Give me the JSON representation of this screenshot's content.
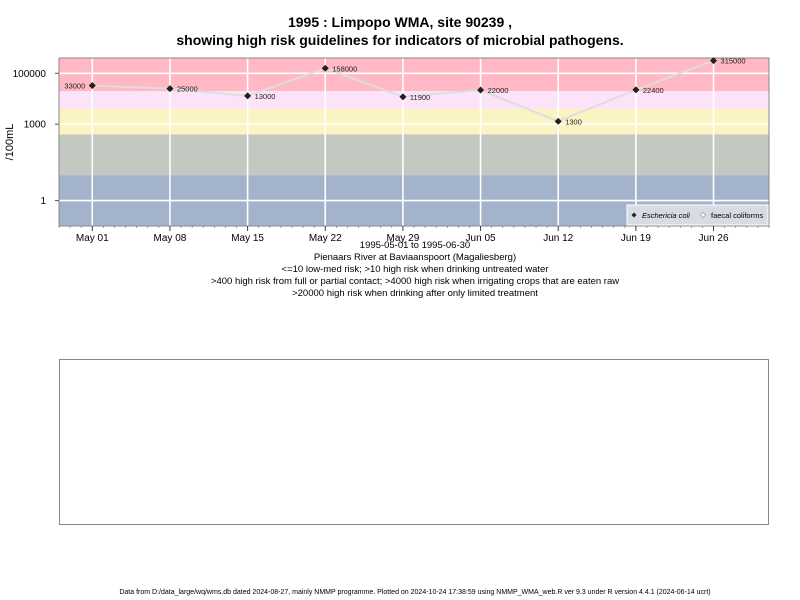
{
  "page": {
    "title_line1": "1995 : Limpopo WMA, site 90239 ,",
    "title_line2": "showing high risk guidelines for indicators of microbial pathogens.",
    "captions": [
      "1995-05-01 to 1995-06-30",
      "Pienaars River at Baviaanspoort (Magaliesberg)",
      "<=10 low-med risk; >10 high risk when drinking untreated water",
      ">400 high risk from full or partial contact; >4000 high risk when irrigating crops that are eaten raw",
      ">20000 high risk when drinking after only limited treatment"
    ],
    "footer": "Data from D:/data_large/wq/wms.db dated 2024-08-27, mainly NMMP programme. Plotted on 2024-10-24 17:38:59 using NMMP_WMA_web.R ver 9.3 under R version 4.4.1 (2024-06-14 ucrt)"
  },
  "chart_data": {
    "type": "line",
    "scale_y": "log10",
    "ylabel": "/100mL",
    "xlabel": "",
    "ylim": [
      0.1,
      400000
    ],
    "yticks": [
      {
        "value": 1,
        "label": "1"
      },
      {
        "value": 1000,
        "label": "1000"
      },
      {
        "value": 100000,
        "label": "100000"
      }
    ],
    "xlim": [
      "1995-04-28",
      "1995-07-01"
    ],
    "xticks": [
      {
        "date": "1995-05-01",
        "label": "May 01"
      },
      {
        "date": "1995-05-08",
        "label": "May 08"
      },
      {
        "date": "1995-05-15",
        "label": "May 15"
      },
      {
        "date": "1995-05-22",
        "label": "May 22"
      },
      {
        "date": "1995-05-29",
        "label": "May 29"
      },
      {
        "date": "1995-06-05",
        "label": "Jun 05"
      },
      {
        "date": "1995-06-12",
        "label": "Jun 12"
      },
      {
        "date": "1995-06-19",
        "label": "Jun 19"
      },
      {
        "date": "1995-06-26",
        "label": "Jun 26"
      }
    ],
    "risk_bands": [
      {
        "from": 0.1,
        "to": 10,
        "color": "#a3b3cc"
      },
      {
        "from": 10,
        "to": 400,
        "color": "#c3c9c0"
      },
      {
        "from": 400,
        "to": 4000,
        "color": "#fbf3c2"
      },
      {
        "from": 4000,
        "to": 20000,
        "color": "#fde3f7"
      },
      {
        "from": 20000,
        "to": 400000,
        "color": "#ffb8c4"
      }
    ],
    "grid": true,
    "legend_position": "bottom-right",
    "series": [
      {
        "name": "Eschericia coli",
        "marker_color": "#222222",
        "line_color": "#dddddd",
        "points": [
          {
            "x": "1995-05-01",
            "y": 33000,
            "label": "33000"
          },
          {
            "x": "1995-05-08",
            "y": 25000,
            "label": "25000"
          },
          {
            "x": "1995-05-15",
            "y": 13000,
            "label": "13000"
          },
          {
            "x": "1995-05-22",
            "y": 158000,
            "label": "158000"
          },
          {
            "x": "1995-05-29",
            "y": 11900,
            "label": "11900"
          },
          {
            "x": "1995-06-05",
            "y": 22000,
            "label": "22000"
          },
          {
            "x": "1995-06-12",
            "y": 1300,
            "label": "1300"
          },
          {
            "x": "1995-06-19",
            "y": 22400,
            "label": "22400"
          },
          {
            "x": "1995-06-26",
            "y": 315000,
            "label": "315000"
          }
        ]
      },
      {
        "name": "faecal coliforms",
        "marker_color": "#ffffff",
        "points": []
      }
    ]
  }
}
